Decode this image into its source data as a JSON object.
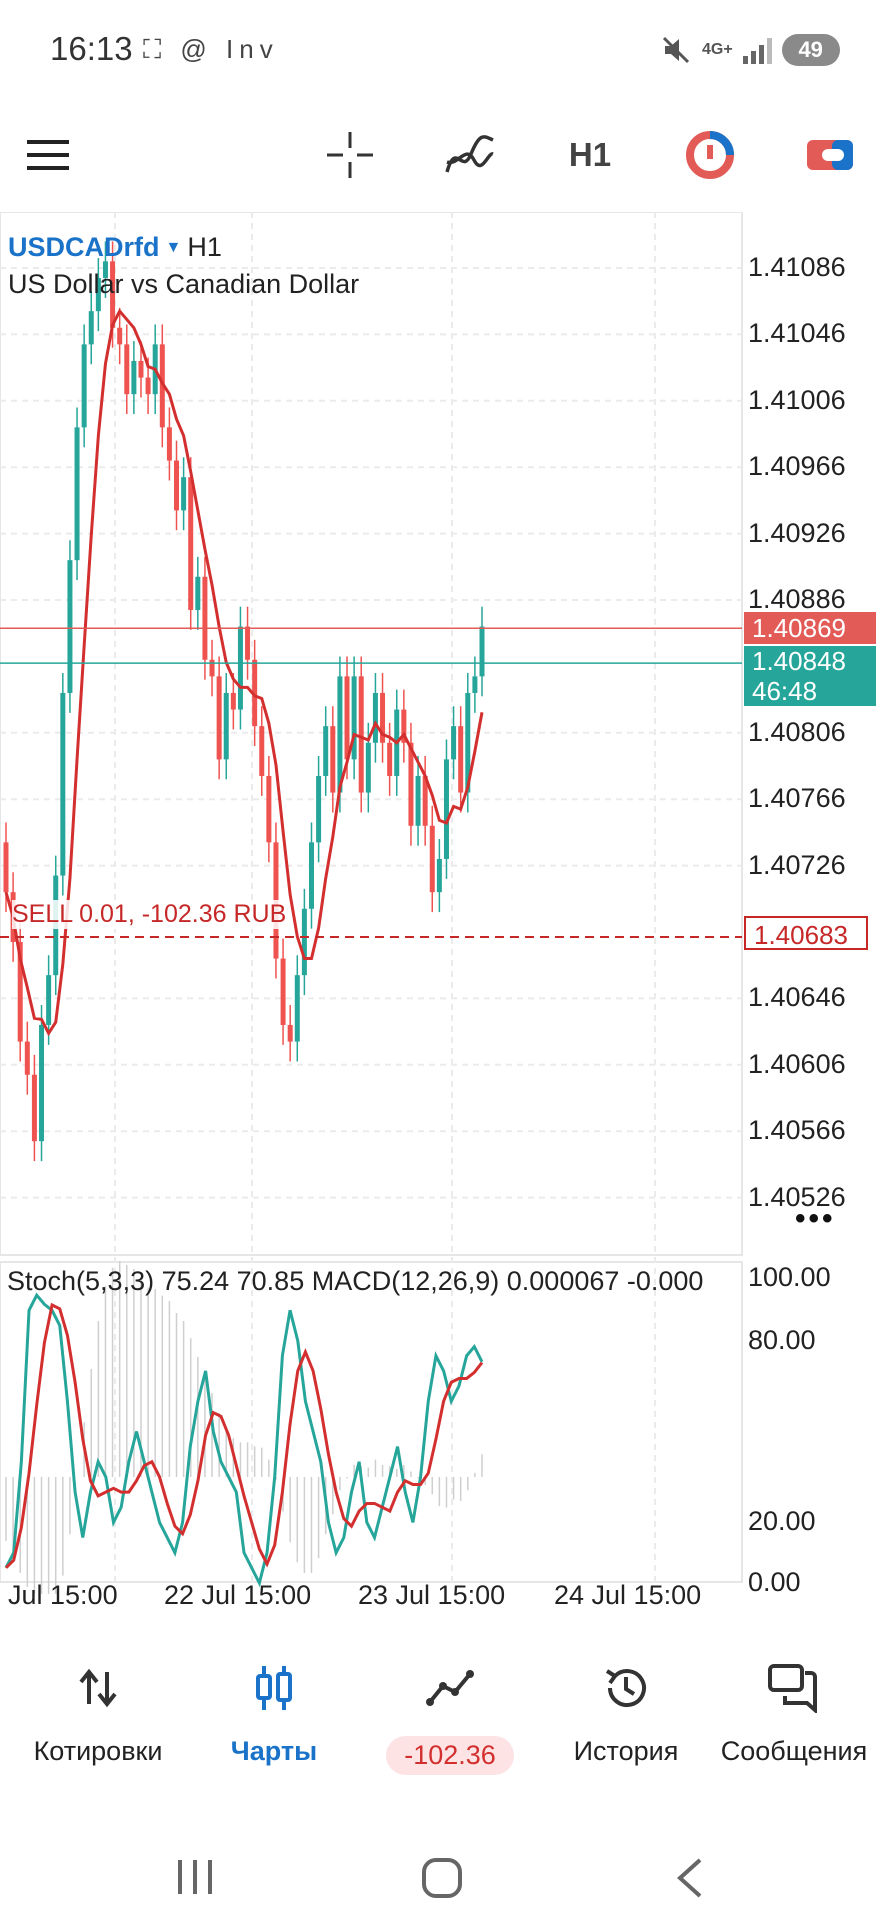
{
  "status_bar": {
    "time": "16:13",
    "left_icons": "⛶ @ Inv",
    "network": "4G+",
    "battery": "49"
  },
  "toolbar": {
    "timeframe": "H1",
    "icons": [
      "menu-icon",
      "crosshair-icon",
      "indicators-icon",
      "timeframe",
      "trade-icon",
      "account-icon"
    ]
  },
  "chart": {
    "symbol": "USDCADrfd",
    "timeframe": "H1",
    "description": "US Dollar vs Canadian Dollar",
    "price_labels": [
      "1.41086",
      "1.41046",
      "1.41006",
      "1.40966",
      "1.40926",
      "1.40886",
      "1.40806",
      "1.40766",
      "1.40726",
      "1.40646",
      "1.40606",
      "1.40566",
      "1.40526"
    ],
    "ask_price": "1.40869",
    "bid_price": "1.40848",
    "countdown": "46:48",
    "order_line": {
      "label": "SELL 0.01,  -102.36 RUB",
      "price": "1.40683"
    },
    "more": "•••",
    "indicator_label": "Stoch(5,3,3) 75.24 70.85 MACD(12,26,9) 0.000067 -0.000",
    "osc_labels": [
      "100.00",
      "80.00",
      "20.00",
      "0.00"
    ],
    "dates": [
      "Jul 15:00",
      "22 Jul 15:00",
      "23 Jul 15:00",
      "24 Jul 15:00"
    ],
    "colors": {
      "bull": "#26a69a",
      "bear": "#ef5350",
      "ma": "#d32f2f",
      "stoch_main": "#26a69a",
      "stoch_signal": "#d32f2f",
      "ask_box": "#e25b57",
      "bid_box": "#26a69a"
    }
  },
  "bottom_nav": {
    "items": [
      {
        "label": "Котировки",
        "icon": "quotes-icon"
      },
      {
        "label": "Чарты",
        "icon": "charts-icon",
        "active": true
      },
      {
        "label": "-102.36",
        "icon": "trade-icon"
      },
      {
        "label": "История",
        "icon": "history-icon"
      },
      {
        "label": "Сообщения",
        "icon": "messages-icon"
      }
    ]
  },
  "system_nav": {
    "icons": [
      "recent-apps-icon",
      "home-icon",
      "back-icon"
    ]
  }
}
